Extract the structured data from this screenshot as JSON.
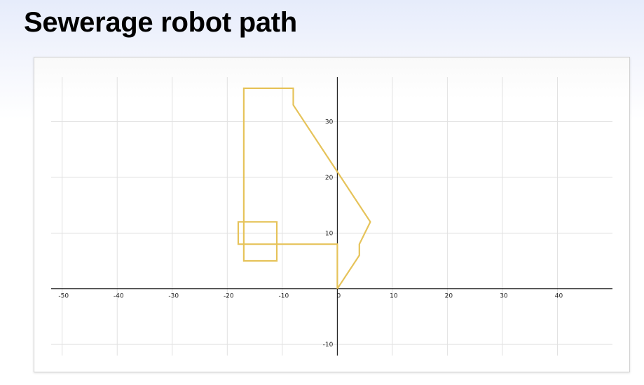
{
  "page": {
    "title": "Sewerage robot path"
  },
  "chart_data": {
    "type": "line",
    "title": "Sewerage robot path",
    "xlabel": "",
    "ylabel": "",
    "xlim": [
      -52,
      50
    ],
    "ylim": [
      -12,
      38
    ],
    "x_ticks": [
      -50,
      -40,
      -30,
      -20,
      -10,
      0,
      10,
      20,
      30,
      40
    ],
    "y_ticks": [
      -10,
      10,
      20,
      30
    ],
    "grid": true,
    "legend": "none",
    "colors": {
      "path": "#e6c35a",
      "grid": "#e1e1e1",
      "axis": "#000000"
    },
    "series": [
      {
        "points": [
          [
            0,
            0
          ],
          [
            4,
            6
          ],
          [
            4,
            8
          ],
          [
            6,
            12
          ],
          [
            0,
            21
          ],
          [
            -8,
            33
          ],
          [
            -8,
            36
          ],
          [
            -17,
            36
          ],
          [
            -17,
            5
          ],
          [
            -11,
            5
          ],
          [
            -11,
            12
          ],
          [
            -18,
            12
          ],
          [
            -18,
            8
          ],
          [
            0,
            8
          ],
          [
            0,
            0
          ]
        ]
      }
    ]
  }
}
